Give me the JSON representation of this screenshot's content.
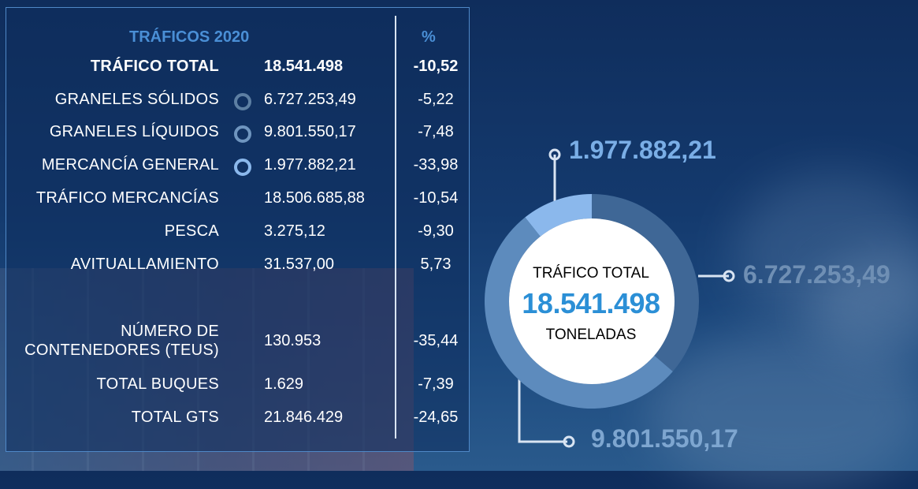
{
  "table": {
    "header_label": "TRÁFICOS 2020",
    "header_pct": "%",
    "rows": [
      {
        "label": "TRÁFICO TOTAL",
        "value": "18.541.498",
        "pct": "-10,52"
      },
      {
        "label": "GRANELES SÓLIDOS",
        "value": "6.727.253,49",
        "pct": "-5,22"
      },
      {
        "label": "GRANELES LÍQUIDOS",
        "value": "9.801.550,17",
        "pct": "-7,48"
      },
      {
        "label": "MERCANCÍA GENERAL",
        "value": "1.977.882,21",
        "pct": "-33,98"
      },
      {
        "label": "TRÁFICO MERCANCÍAS",
        "value": "18.506.685,88",
        "pct": "-10,54"
      },
      {
        "label": "PESCA",
        "value": "3.275,12",
        "pct": "-9,30"
      },
      {
        "label": "AVITUALLAMIENTO",
        "value": "31.537,00",
        "pct": "5,73"
      },
      {
        "label_line1": "NÚMERO DE",
        "label_line2": "CONTENEDORES (TEUS)",
        "value": "130.953",
        "pct": "-35,44"
      },
      {
        "label": "TOTAL BUQUES",
        "value": "1.629",
        "pct": "-7,39"
      },
      {
        "label": "TOTAL GTS",
        "value": "21.846.429",
        "pct": "-24,65"
      }
    ]
  },
  "chart_data": {
    "type": "pie",
    "center_title": "TRÁFICO TOTAL",
    "center_value": "18.541.498",
    "center_unit": "TONELADAS",
    "slices": [
      {
        "label": "1.977.882,21",
        "value": 1977882.21,
        "color": "#8bb8ec"
      },
      {
        "label": "6.727.253,49",
        "value": 6727253.49,
        "color": "#3f6796"
      },
      {
        "label": "9.801.550,17",
        "value": 9801550.17,
        "color": "#5d8bbd"
      }
    ]
  },
  "colors": {
    "header": "#4a8fd6",
    "accent": "#2b8fd6",
    "line": "#d9e4f2"
  }
}
